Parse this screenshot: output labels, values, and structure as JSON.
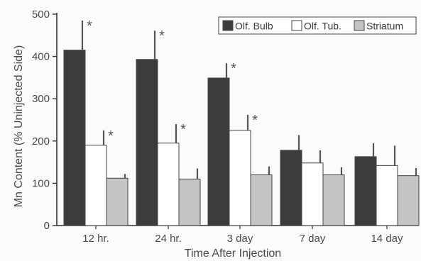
{
  "chart_data": {
    "type": "bar",
    "title": "",
    "xlabel": "Time After Injection",
    "ylabel": "Mn Content (% Uninjected Side)",
    "ylim": [
      0,
      500
    ],
    "yticks": [
      0,
      100,
      200,
      300,
      400,
      500
    ],
    "categories": [
      "12 hr.",
      "24 hr.",
      "3 day",
      "7 day",
      "14 day"
    ],
    "series": [
      {
        "name": "Olf. Bulb",
        "color": "#3c3c3c",
        "values": [
          415,
          393,
          349,
          178,
          163
        ],
        "errors": [
          70,
          68,
          35,
          36,
          32
        ],
        "significant": [
          true,
          true,
          true,
          false,
          false
        ]
      },
      {
        "name": "Olf. Tub.",
        "color": "#ffffff",
        "values": [
          190,
          195,
          225,
          148,
          142
        ],
        "errors": [
          35,
          45,
          37,
          30,
          47
        ],
        "significant": [
          true,
          true,
          true,
          false,
          false
        ]
      },
      {
        "name": "Striatum",
        "color": "#c4c4c4",
        "values": [
          112,
          110,
          120,
          120,
          118
        ],
        "errors": [
          10,
          25,
          20,
          18,
          18
        ],
        "significant": [
          false,
          false,
          false,
          false,
          false
        ]
      }
    ],
    "significance_marker": "*",
    "legend_position": "top-right",
    "grid": false
  }
}
